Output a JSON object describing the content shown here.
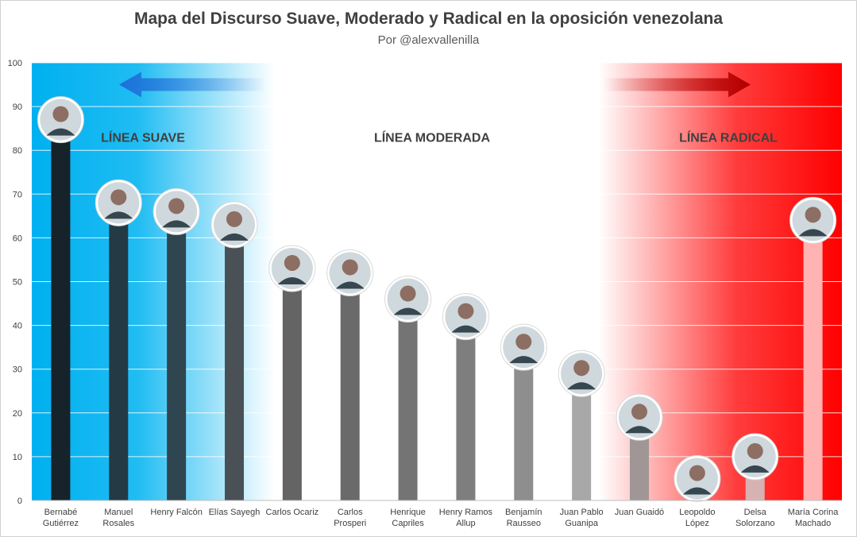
{
  "chart_data": {
    "type": "bar",
    "title": "Mapa del Discurso Suave, Moderado y Radical en la oposición venezolana",
    "subtitle": "Por @alexvallenilla",
    "ylim": [
      0,
      100
    ],
    "yticks": [
      0,
      10,
      20,
      30,
      40,
      50,
      60,
      70,
      80,
      90,
      100
    ],
    "grid": true,
    "categories": [
      [
        "Bernabé",
        "Gutiérrez"
      ],
      [
        "Manuel",
        "Rosales"
      ],
      [
        "Henry Falcón"
      ],
      [
        "Elías Sayegh"
      ],
      [
        "Carlos Ocariz"
      ],
      [
        "Carlos",
        "Prosperi"
      ],
      [
        "Henrique",
        "Capriles"
      ],
      [
        "Henry Ramos",
        "Allup"
      ],
      [
        "Benjamín",
        "Rausseo"
      ],
      [
        "Juan Pablo",
        "Guanipa"
      ],
      [
        "Juan Guaidó"
      ],
      [
        "Leopoldo",
        "López"
      ],
      [
        "Delsa",
        "Solorzano"
      ],
      [
        "María Corina",
        "Machado"
      ]
    ],
    "values": [
      87,
      68,
      66,
      63,
      53,
      52,
      46,
      42,
      35,
      29,
      19,
      5,
      10,
      64
    ],
    "bar_colors": [
      "#16232b",
      "#243a45",
      "#2f4550",
      "#4a5156",
      "#646464",
      "#6a6a6a",
      "#747474",
      "#7e7e7e",
      "#8e8e8e",
      "#a8a8a8",
      "#a09696",
      "#c8aaaa",
      "#d8b2b2",
      "#ffb3b3"
    ],
    "zones": [
      {
        "label": "LÍNEA SUAVE",
        "color": "#00b0f0"
      },
      {
        "label": "LÍNEA MODERADA",
        "color": "#ffffff"
      },
      {
        "label": "LÍNEA RADICAL",
        "color": "#ff0000"
      }
    ],
    "arrows": [
      {
        "direction": "left",
        "color": "#1f6fd8"
      },
      {
        "direction": "right",
        "color": "#c00000"
      }
    ]
  }
}
